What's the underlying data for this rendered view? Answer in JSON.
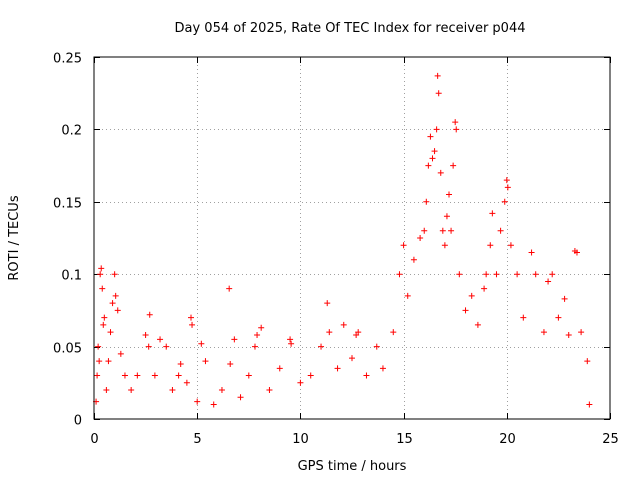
{
  "chart_data": {
    "type": "scatter",
    "title": "Day 054 of 2025, Rate Of TEC Index for receiver p044",
    "xlabel": "GPS time / hours",
    "ylabel": "ROTI / TECUs",
    "xlim": [
      0,
      25
    ],
    "ylim": [
      0,
      0.25
    ],
    "x_ticks": [
      0,
      5,
      10,
      15,
      20,
      25
    ],
    "x_tick_labels": [
      "0",
      "5",
      "10",
      "15",
      "20",
      "25"
    ],
    "y_ticks": [
      0,
      0.05,
      0.1,
      0.15,
      0.2,
      0.25
    ],
    "y_tick_labels": [
      "0",
      "0.05",
      "0.1",
      "0.15",
      "0.2",
      "0.25"
    ],
    "grid": true,
    "marker": "plus",
    "color": "#ff0000",
    "series": [
      {
        "points": [
          [
            0.1,
            0.012
          ],
          [
            0.15,
            0.03
          ],
          [
            0.2,
            0.05
          ],
          [
            0.25,
            0.04
          ],
          [
            0.3,
            0.1
          ],
          [
            0.35,
            0.104
          ],
          [
            0.4,
            0.09
          ],
          [
            0.45,
            0.065
          ],
          [
            0.5,
            0.07
          ],
          [
            0.6,
            0.02
          ],
          [
            0.7,
            0.04
          ],
          [
            0.8,
            0.06
          ],
          [
            0.9,
            0.08
          ],
          [
            1.0,
            0.1
          ],
          [
            1.05,
            0.085
          ],
          [
            1.15,
            0.075
          ],
          [
            1.3,
            0.045
          ],
          [
            1.5,
            0.03
          ],
          [
            1.8,
            0.02
          ],
          [
            2.1,
            0.03
          ],
          [
            2.5,
            0.058
          ],
          [
            2.65,
            0.05
          ],
          [
            2.7,
            0.072
          ],
          [
            2.95,
            0.03
          ],
          [
            3.2,
            0.055
          ],
          [
            3.5,
            0.05
          ],
          [
            3.8,
            0.02
          ],
          [
            4.1,
            0.03
          ],
          [
            4.2,
            0.038
          ],
          [
            4.5,
            0.025
          ],
          [
            4.7,
            0.07
          ],
          [
            4.75,
            0.065
          ],
          [
            5.0,
            0.012
          ],
          [
            5.2,
            0.052
          ],
          [
            5.4,
            0.04
          ],
          [
            5.8,
            0.01
          ],
          [
            6.2,
            0.02
          ],
          [
            6.55,
            0.09
          ],
          [
            6.6,
            0.038
          ],
          [
            6.8,
            0.055
          ],
          [
            7.1,
            0.015
          ],
          [
            7.5,
            0.03
          ],
          [
            7.8,
            0.05
          ],
          [
            7.9,
            0.058
          ],
          [
            8.1,
            0.063
          ],
          [
            8.5,
            0.02
          ],
          [
            9.0,
            0.035
          ],
          [
            9.5,
            0.055
          ],
          [
            9.55,
            0.052
          ],
          [
            10.0,
            0.025
          ],
          [
            10.5,
            0.03
          ],
          [
            11.0,
            0.05
          ],
          [
            11.3,
            0.08
          ],
          [
            11.4,
            0.06
          ],
          [
            11.8,
            0.035
          ],
          [
            12.1,
            0.065
          ],
          [
            12.5,
            0.042
          ],
          [
            12.7,
            0.058
          ],
          [
            12.8,
            0.06
          ],
          [
            13.2,
            0.03
          ],
          [
            13.7,
            0.05
          ],
          [
            14.0,
            0.035
          ],
          [
            14.5,
            0.06
          ],
          [
            14.8,
            0.1
          ],
          [
            15.0,
            0.12
          ],
          [
            15.2,
            0.085
          ],
          [
            15.5,
            0.11
          ],
          [
            15.8,
            0.125
          ],
          [
            16.0,
            0.13
          ],
          [
            16.1,
            0.15
          ],
          [
            16.2,
            0.175
          ],
          [
            16.3,
            0.195
          ],
          [
            16.4,
            0.18
          ],
          [
            16.5,
            0.185
          ],
          [
            16.6,
            0.2
          ],
          [
            16.65,
            0.237
          ],
          [
            16.7,
            0.225
          ],
          [
            16.8,
            0.17
          ],
          [
            16.9,
            0.13
          ],
          [
            17.0,
            0.12
          ],
          [
            17.1,
            0.14
          ],
          [
            17.2,
            0.155
          ],
          [
            17.3,
            0.13
          ],
          [
            17.4,
            0.175
          ],
          [
            17.5,
            0.205
          ],
          [
            17.55,
            0.2
          ],
          [
            17.7,
            0.1
          ],
          [
            18.0,
            0.075
          ],
          [
            18.3,
            0.085
          ],
          [
            18.6,
            0.065
          ],
          [
            18.9,
            0.09
          ],
          [
            19.0,
            0.1
          ],
          [
            19.2,
            0.12
          ],
          [
            19.3,
            0.142
          ],
          [
            19.5,
            0.1
          ],
          [
            19.7,
            0.13
          ],
          [
            19.9,
            0.15
          ],
          [
            20.0,
            0.165
          ],
          [
            20.05,
            0.16
          ],
          [
            20.2,
            0.12
          ],
          [
            20.5,
            0.1
          ],
          [
            20.8,
            0.07
          ],
          [
            21.2,
            0.115
          ],
          [
            21.4,
            0.1
          ],
          [
            21.8,
            0.06
          ],
          [
            22.0,
            0.095
          ],
          [
            22.2,
            0.1
          ],
          [
            22.5,
            0.07
          ],
          [
            22.8,
            0.083
          ],
          [
            23.0,
            0.058
          ],
          [
            23.3,
            0.116
          ],
          [
            23.4,
            0.115
          ],
          [
            23.6,
            0.06
          ],
          [
            23.9,
            0.04
          ],
          [
            24.0,
            0.01
          ]
        ]
      }
    ]
  }
}
